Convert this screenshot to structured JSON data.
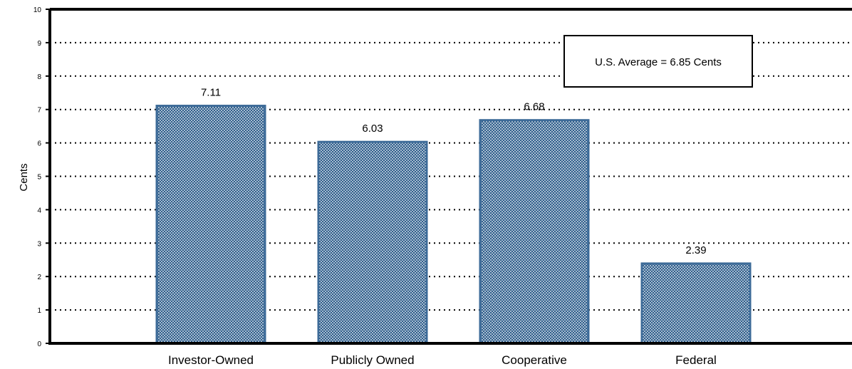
{
  "chart_data": {
    "type": "bar",
    "categories": [
      "Investor-Owned",
      "Publicly Owned",
      "Cooperative",
      "Federal"
    ],
    "values": [
      7.11,
      6.03,
      6.68,
      2.39
    ],
    "value_labels": [
      "7.11",
      "6.03",
      "6.68",
      "2.39"
    ],
    "title": "",
    "xlabel": "",
    "ylabel": "Cents",
    "ylim": [
      0,
      10
    ],
    "yticks": [
      "0",
      "1",
      "2",
      "3",
      "4",
      "5",
      "6",
      "7",
      "8",
      "9",
      "10"
    ],
    "grid": "dotted horizontal",
    "annotation": "U.S. Average = 6.85 Cents",
    "colors": {
      "bar_fill": "#2f5e8c",
      "bar_dots": "#ffffff",
      "bar_edge": "#3d6b98",
      "axis": "#000000",
      "grid": "#000000"
    }
  }
}
